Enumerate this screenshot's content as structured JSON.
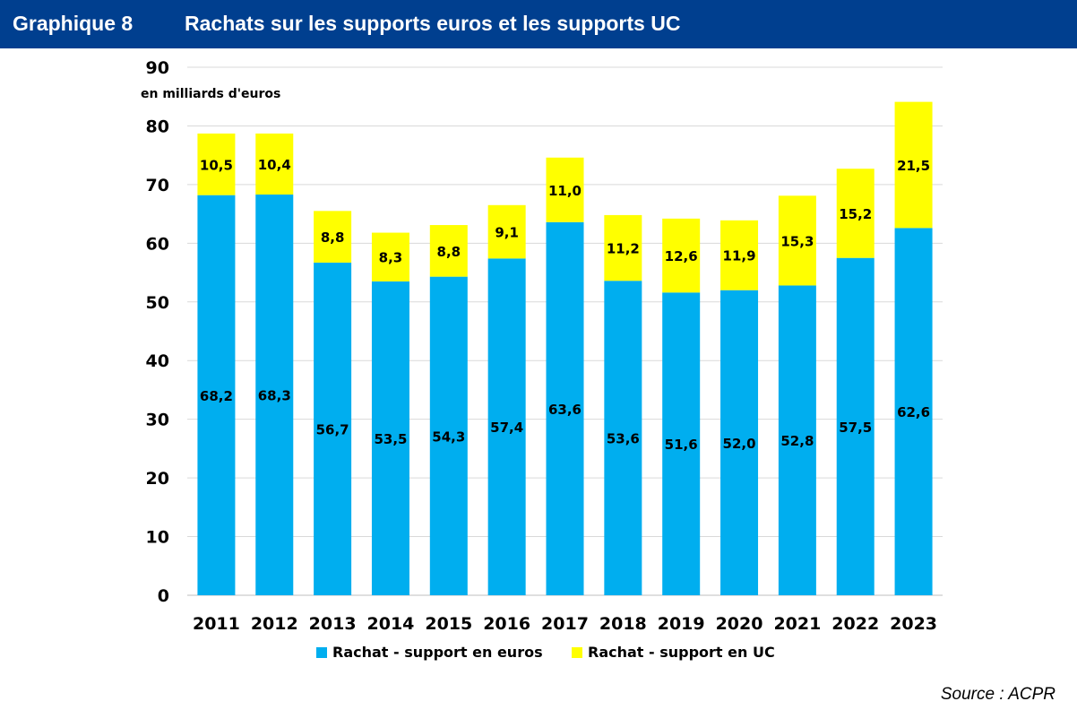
{
  "header": {
    "number": "Graphique 8",
    "title": "Rachats sur les supports euros et les supports UC",
    "background": "#003f8f"
  },
  "source": "Source : ACPR",
  "chart_data": {
    "type": "bar",
    "stacked": true,
    "title": "Rachats sur les supports euros et les supports UC",
    "unit_label": "en milliards d'euros",
    "xlabel": "",
    "ylabel": "",
    "ylim": [
      0,
      90
    ],
    "yticks": [
      "0",
      "10",
      "20",
      "30",
      "40",
      "50",
      "60",
      "70",
      "80",
      "90"
    ],
    "grid": true,
    "legend_position": "bottom",
    "categories": [
      "2011",
      "2012",
      "2013",
      "2014",
      "2015",
      "2016",
      "2017",
      "2018",
      "2019",
      "2020",
      "2021",
      "2022",
      "2023"
    ],
    "series": [
      {
        "name": "Rachat - support en euros",
        "color": "#00aeef",
        "values": [
          68.2,
          68.3,
          56.7,
          53.5,
          54.3,
          57.4,
          63.6,
          53.6,
          51.6,
          52.0,
          52.8,
          57.5,
          62.6
        ],
        "labels": [
          "68,2",
          "68,3",
          "56,7",
          "53,5",
          "54,3",
          "57,4",
          "63,6",
          "53,6",
          "51,6",
          "52,0",
          "52,8",
          "57,5",
          "62,6"
        ]
      },
      {
        "name": "Rachat - support en UC",
        "color": "#ffff00",
        "values": [
          10.5,
          10.4,
          8.8,
          8.3,
          8.8,
          9.1,
          11.0,
          11.2,
          12.6,
          11.9,
          15.3,
          15.2,
          21.5
        ],
        "labels": [
          "10,5",
          "10,4",
          "8,8",
          "8,3",
          "8,8",
          "9,1",
          "11,0",
          "11,2",
          "12,6",
          "11,9",
          "15,3",
          "15,2",
          "21,5"
        ]
      }
    ]
  }
}
